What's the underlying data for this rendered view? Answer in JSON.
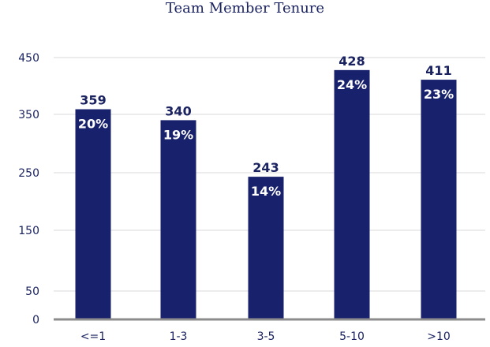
{
  "chart_data": {
    "type": "bar",
    "title": "Team Member Tenure",
    "xlabel": "",
    "ylabel": "",
    "categories": [
      "<=1",
      "1-3",
      "3-5",
      "5-10",
      ">10"
    ],
    "values": [
      359,
      340,
      243,
      428,
      411
    ],
    "percent_labels": [
      "20%",
      "19%",
      "14%",
      "24%",
      "23%"
    ],
    "y_ticks": [
      0,
      50,
      150,
      250,
      350,
      450
    ],
    "ylim": [
      0,
      450
    ],
    "grid": true,
    "colors": {
      "bar": "#18216b",
      "text": "#1a2360",
      "grid": "#d9d9d9",
      "axis": "#8c8c8c"
    }
  }
}
